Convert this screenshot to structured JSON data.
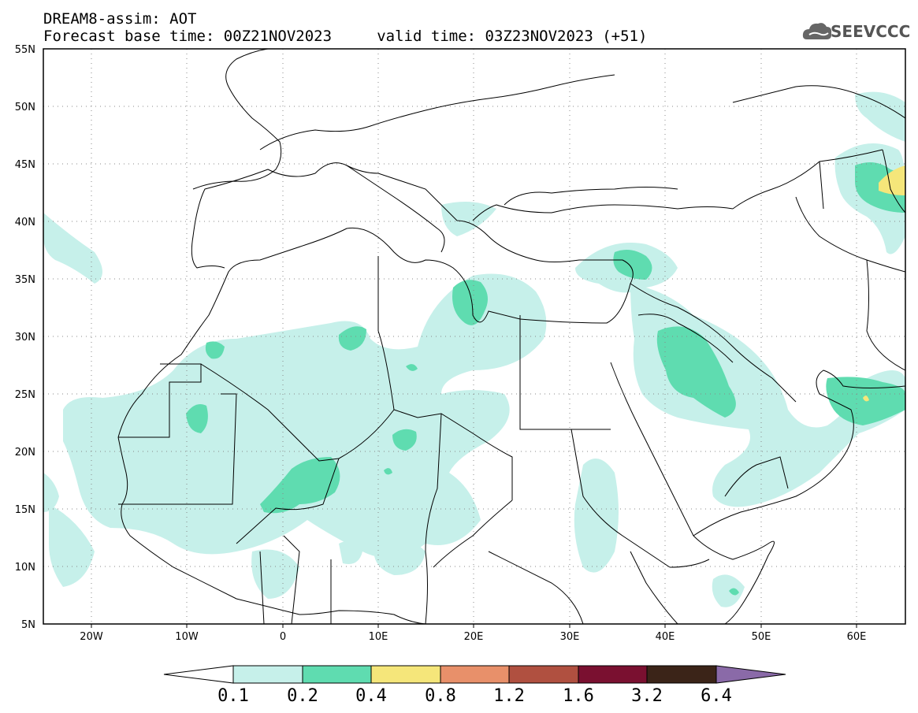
{
  "header": {
    "line1": "DREAM8-assim: AOT",
    "line2": "Forecast base time: 00Z21NOV2023     valid time: 03Z23NOV2023 (+51)"
  },
  "logo": {
    "text": "SEEVCCC",
    "icon": "cloud-icon"
  },
  "axes": {
    "lon_labels": [
      "20W",
      "10W",
      "0",
      "10E",
      "20E",
      "30E",
      "40E",
      "50E",
      "60E"
    ],
    "lat_labels": [
      "55N",
      "50N",
      "45N",
      "40N",
      "35N",
      "30N",
      "25N",
      "20N",
      "15N",
      "10N",
      "5N"
    ],
    "lon_range": [
      -25,
      65
    ],
    "lat_range": [
      5,
      55
    ]
  },
  "colorbar": {
    "levels": [
      "0.1",
      "0.2",
      "0.4",
      "0.8",
      "1.2",
      "1.6",
      "3.2",
      "6.4"
    ],
    "colors": [
      "#c6f0ea",
      "#5fdcb0",
      "#f5e67a",
      "#e8906a",
      "#b05040",
      "#7a1030",
      "#3b2418",
      "#8a6aa8"
    ]
  }
}
